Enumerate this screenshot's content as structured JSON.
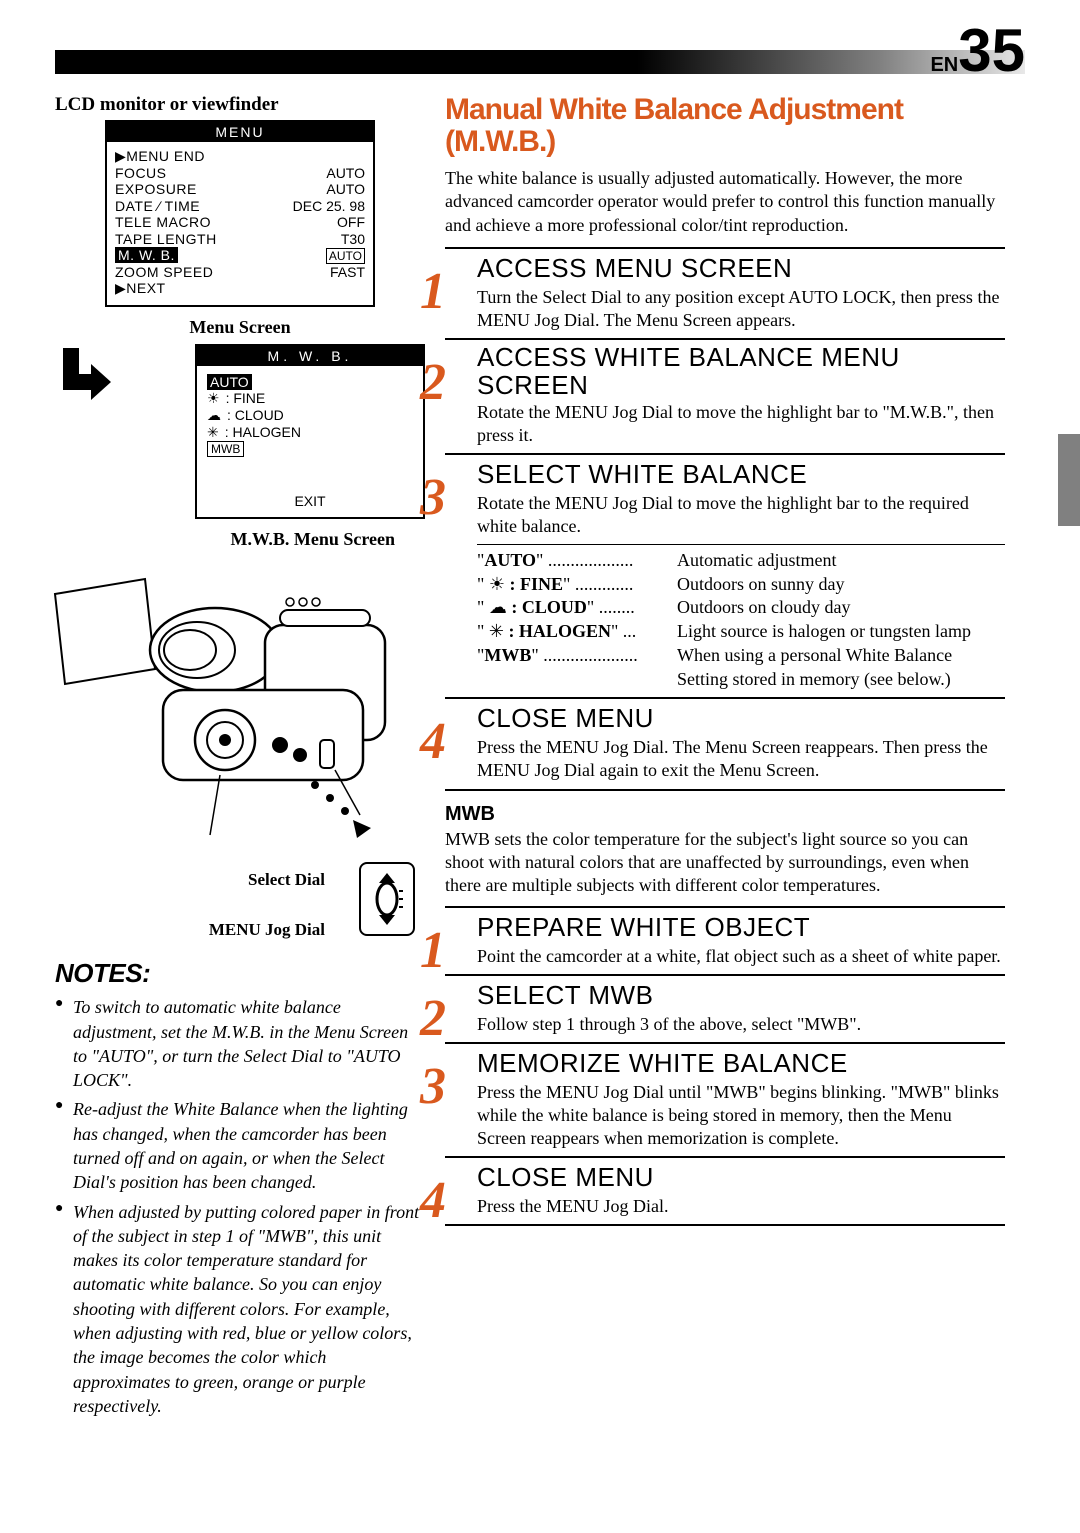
{
  "page": {
    "lang_prefix": "EN",
    "number": "35"
  },
  "left": {
    "lcd_label": "LCD monitor or viewfinder",
    "menu": {
      "title": "MENU",
      "rows": [
        {
          "left": "▶MENU END",
          "right": ""
        },
        {
          "left": "FOCUS",
          "right": "AUTO"
        },
        {
          "left": "EXPOSURE",
          "right": "AUTO"
        },
        {
          "left": "DATE ∕ TIME",
          "right": "DEC   25. 98"
        },
        {
          "left": "TELE    MACRO",
          "right": "OFF"
        },
        {
          "left": "TAPE    LENGTH",
          "right": "T30"
        },
        {
          "left_hl": "M. W. B.",
          "right_boxed": "AUTO"
        },
        {
          "left": "ZOOM SPEED",
          "right": "FAST"
        },
        {
          "left": "▶NEXT",
          "right": ""
        }
      ]
    },
    "menu_label": "Menu Screen",
    "mwb": {
      "title": "M. W. B.",
      "options": [
        {
          "hl": true,
          "icon": "",
          "label": "AUTO"
        },
        {
          "icon": "☀",
          "label": ": FINE"
        },
        {
          "icon": "☁",
          "label": ": CLOUD"
        },
        {
          "icon": "✳",
          "label": ": HALOGEN"
        },
        {
          "boxed": true,
          "label": "MWB"
        }
      ],
      "exit": "EXIT"
    },
    "mwb_label": "M.W.B. Menu Screen",
    "diagram": {
      "select_dial": "Select Dial",
      "jog_dial": "MENU Jog Dial"
    },
    "notes": {
      "title": "NOTES:",
      "items": [
        "To switch to automatic white balance adjustment, set the M.W.B. in the Menu Screen to \"AUTO\", or turn the Select Dial to \"AUTO LOCK\".",
        "Re-adjust the White Balance when the lighting has changed, when the camcorder has been turned off and on again, or when the Select Dial's position has been changed.",
        "When adjusted by putting colored paper in front of the subject in step 1 of \"MWB\", this unit makes its color temperature standard for automatic white balance. So you can enjoy shooting with different colors. For example, when adjusting with red, blue or yellow colors, the image becomes the color which approximates to green, orange or purple respectively."
      ]
    }
  },
  "right": {
    "title": "Manual White Balance Adjustment (M.W.B.)",
    "intro": "The white balance is usually adjusted automatically. However, the more advanced camcorder operator would prefer to control this function manually and achieve a more professional color/tint reproduction.",
    "steps1": [
      {
        "n": "1",
        "title": "ACCESS MENU SCREEN",
        "body": "Turn the Select Dial to any position except AUTO LOCK, then press the MENU Jog Dial. The Menu Screen appears."
      },
      {
        "n": "2",
        "title": "ACCESS WHITE BALANCE MENU SCREEN",
        "body": "Rotate the MENU Jog Dial to move the highlight bar to \"M.W.B.\", then press it."
      },
      {
        "n": "3",
        "title": "SELECT WHITE BALANCE",
        "body": "Rotate the MENU Jog Dial to move the highlight bar to the required white balance."
      },
      {
        "n": "4",
        "title": "CLOSE MENU",
        "body": "Press the MENU Jog Dial. The Menu Screen reappears. Then press the MENU Jog Dial again to exit the Menu Screen."
      }
    ],
    "wb_options": [
      {
        "key_q": "\"",
        "key_b": "AUTO",
        "key_rest": "\"  ...................",
        "desc": "Automatic adjustment"
      },
      {
        "key_q": "\"",
        "key_icon": "☀",
        "key_b": ": FINE",
        "key_rest": "\"  .............",
        "desc": "Outdoors on sunny day"
      },
      {
        "key_q": "\"",
        "key_icon": "☁",
        "key_b": ": CLOUD",
        "key_rest": "\"  ........",
        "desc": "Outdoors on cloudy day"
      },
      {
        "key_q": "\"",
        "key_icon": "✳",
        "key_b": ": HALOGEN",
        "key_rest": "\"  ...",
        "desc": "Light source is halogen or tungsten lamp"
      },
      {
        "key_q": "\"",
        "key_b": "MWB",
        "key_rest": "\"  .....................",
        "desc": "When using a personal White Balance Setting stored in memory (see below.)"
      }
    ],
    "mwb_section": {
      "title": "MWB",
      "body": "MWB sets the color temperature for the subject's light source so you can shoot with natural colors that are unaffected by surroundings, even when there are multiple subjects with different color temperatures."
    },
    "steps2": [
      {
        "n": "1",
        "title": "PREPARE WHITE OBJECT",
        "body": "Point the camcorder at a white, flat object such as a sheet of white paper."
      },
      {
        "n": "2",
        "title": "SELECT MWB",
        "body": "Follow step 1 through 3 of the above, select \"MWB\"."
      },
      {
        "n": "3",
        "title": "MEMORIZE WHITE BALANCE",
        "body": "Press the MENU Jog Dial until \"MWB\" begins blinking. \"MWB\" blinks while the white balance is being stored in memory, then the Menu Screen reappears when memorization is complete."
      },
      {
        "n": "4",
        "title": "CLOSE MENU",
        "body": "Press the MENU Jog Dial."
      }
    ]
  },
  "colors": {
    "accent": "#d9591e",
    "black": "#000000",
    "gray": "#808080"
  }
}
